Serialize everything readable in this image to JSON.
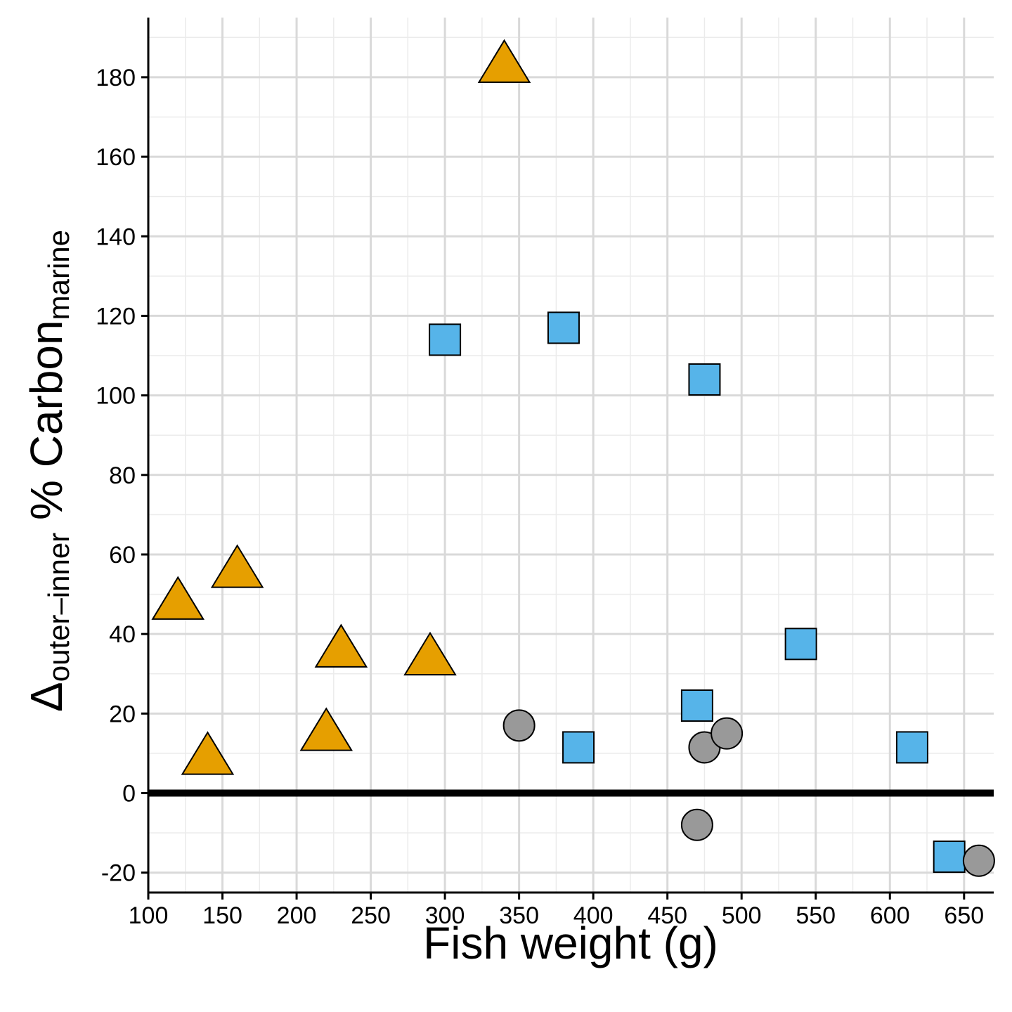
{
  "chart_data": {
    "type": "scatter",
    "xlabel": "Fish weight (g)",
    "ylabel": {
      "prefix": "Δ",
      "subscript": "outer–inner",
      "main": " % Carbon",
      "subscript2": "marine"
    },
    "xlim": [
      100,
      670
    ],
    "ylim": [
      -25,
      195
    ],
    "xticks": [
      100,
      150,
      200,
      250,
      300,
      350,
      400,
      450,
      500,
      550,
      600,
      650
    ],
    "yticks": [
      -20,
      0,
      20,
      40,
      60,
      80,
      100,
      120,
      140,
      160,
      180
    ],
    "xtick_labels": [
      "100",
      "150",
      "200",
      "250",
      "300",
      "350",
      "400",
      "450",
      "500",
      "550",
      "600",
      "650"
    ],
    "ytick_labels": [
      "-20",
      "0",
      "20",
      "40",
      "60",
      "80",
      "100",
      "120",
      "140",
      "160",
      "180"
    ],
    "grid": true,
    "reference_line_y": 0,
    "series": [
      {
        "marker": "triangle",
        "color": "#E69F00",
        "points": [
          {
            "x": 120,
            "y": 49
          },
          {
            "x": 140,
            "y": 10
          },
          {
            "x": 160,
            "y": 57
          },
          {
            "x": 220,
            "y": 16
          },
          {
            "x": 230,
            "y": 37
          },
          {
            "x": 290,
            "y": 35
          },
          {
            "x": 340,
            "y": 184
          }
        ]
      },
      {
        "marker": "square",
        "color": "#56B4E9",
        "points": [
          {
            "x": 300,
            "y": 114
          },
          {
            "x": 380,
            "y": 117
          },
          {
            "x": 390,
            "y": 11.5
          },
          {
            "x": 470,
            "y": 22
          },
          {
            "x": 475,
            "y": 104
          },
          {
            "x": 540,
            "y": 37.5
          },
          {
            "x": 615,
            "y": 11.5
          },
          {
            "x": 640,
            "y": -16
          }
        ]
      },
      {
        "marker": "circle",
        "color": "#999999",
        "points": [
          {
            "x": 350,
            "y": 17
          },
          {
            "x": 470,
            "y": -8
          },
          {
            "x": 475,
            "y": 11.5
          },
          {
            "x": 490,
            "y": 15
          },
          {
            "x": 660,
            "y": -17
          }
        ]
      }
    ]
  }
}
